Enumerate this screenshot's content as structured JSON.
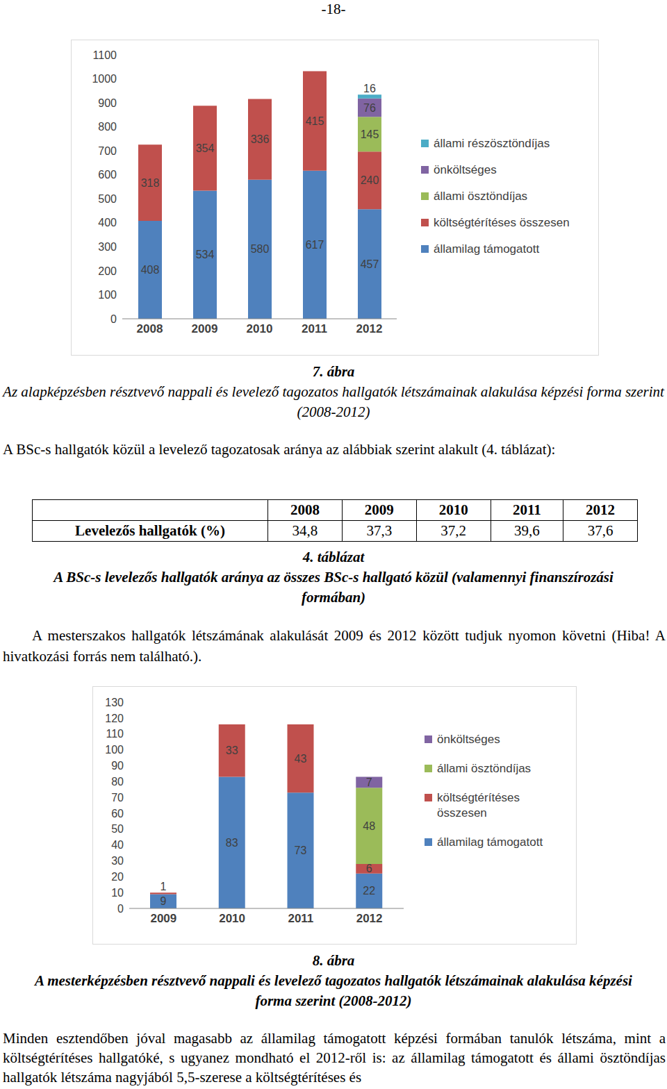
{
  "page_number": "-18-",
  "chart_data": [
    {
      "type": "bar",
      "stacked": true,
      "data_labels": true,
      "grid": false,
      "legend": "right",
      "categories": [
        "2008",
        "2009",
        "2010",
        "2011",
        "2012"
      ],
      "ylim": [
        0,
        1100
      ],
      "yticks": [
        0,
        100,
        200,
        300,
        400,
        500,
        600,
        700,
        800,
        900,
        1000,
        1100
      ],
      "series": [
        {
          "name": "államilag támogatott",
          "color": "#4f81bd",
          "values": [
            408,
            534,
            580,
            617,
            457
          ]
        },
        {
          "name": "költségtérítéses összesen",
          "color": "#c0504d",
          "values": [
            318,
            354,
            336,
            415,
            240
          ]
        },
        {
          "name": "állami ösztöndíjas",
          "color": "#9bbb59",
          "values": [
            null,
            null,
            null,
            null,
            145
          ]
        },
        {
          "name": "önköltséges",
          "color": "#8064a2",
          "values": [
            null,
            null,
            null,
            null,
            76
          ]
        },
        {
          "name": "állami részösztöndíjas",
          "color": "#4bacc6",
          "values": [
            null,
            null,
            null,
            null,
            16
          ]
        }
      ]
    },
    {
      "type": "bar",
      "stacked": true,
      "data_labels": true,
      "grid": false,
      "legend": "right",
      "categories": [
        "2009",
        "2010",
        "2011",
        "2012"
      ],
      "ylim": [
        0,
        130
      ],
      "yticks": [
        0,
        10,
        20,
        30,
        40,
        50,
        60,
        70,
        80,
        90,
        100,
        110,
        120,
        130
      ],
      "series": [
        {
          "name": "államilag támogatott",
          "color": "#4f81bd",
          "values": [
            9,
            83,
            73,
            22
          ]
        },
        {
          "name": "költségtérítéses összesen",
          "color": "#c0504d",
          "values": [
            1,
            33,
            43,
            6
          ]
        },
        {
          "name": "állami ösztöndíjas",
          "color": "#9bbb59",
          "values": [
            null,
            null,
            null,
            48
          ]
        },
        {
          "name": "önköltséges",
          "color": "#8064a2",
          "values": [
            null,
            null,
            null,
            7
          ]
        }
      ]
    }
  ],
  "figure_captions": [
    {
      "number": "7. ábra",
      "title": "Az alapképzésben résztvevő nappali és levelező tagozatos hallgatók létszámainak alakulása képzési forma szerint (2008-2012)"
    },
    {
      "number": "8. ábra",
      "title": "A mesterképzésben résztvevő nappali és levelező tagozatos hallgatók létszámainak alakulása képzési forma szerint (2008-2012)"
    }
  ],
  "paragraphs": [
    "A BSc-s hallgatók közül a levelező tagozatosak aránya az alábbiak szerint alakult (4. táblázat):",
    "A mesterszakos hallgatók létszámának alakulását 2009 és 2012 között tudjuk nyomon követni (Hiba! A hivatkozási forrás nem található.).",
    "Minden esztendőben jóval magasabb az államilag támogatott képzési formában tanulók létszáma, mint a költségtérítéses hallgatóké, s ugyanez mondható el 2012-ről is: az államilag támogatott és állami ösztöndíjas hallgatók létszáma nagyjából 5,5-szerese a költségtérítéses és"
  ],
  "table": {
    "header": [
      "2008",
      "2009",
      "2010",
      "2011",
      "2012"
    ],
    "rows": [
      [
        "Levelezős hallgatók (%)",
        "34,8",
        "37,3",
        "37,2",
        "39,6",
        "37,6"
      ]
    ]
  },
  "table_caption": {
    "number": "4. táblázat",
    "title": "A BSc-s levelezős hallgatók aránya az összes BSc-s hallgató közül (valamennyi finanszírozási formában)"
  }
}
